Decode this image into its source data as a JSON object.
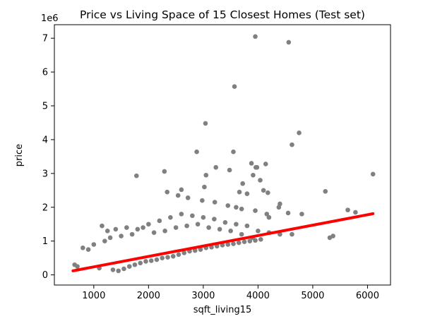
{
  "chart_data": {
    "type": "scatter",
    "title": "Price vs Living Space of 15 Closest Homes (Test set)",
    "xlabel": "sqft_living15",
    "ylabel": "price",
    "y_offset_label": "1e6",
    "xlim": [
      280,
      6420
    ],
    "ylim": [
      -300000,
      7400000
    ],
    "x_ticks": [
      1000,
      2000,
      3000,
      4000,
      5000,
      6000
    ],
    "x_tick_labels": [
      "1000",
      "2000",
      "3000",
      "4000",
      "5000",
      "6000"
    ],
    "y_ticks": [
      0,
      1000000,
      2000000,
      3000000,
      4000000,
      5000000,
      6000000,
      7000000
    ],
    "y_tick_labels": [
      "0",
      "1",
      "2",
      "3",
      "4",
      "5",
      "6",
      "7"
    ],
    "grid": false,
    "legend": "none",
    "colors": {
      "points": "#808080",
      "fit_line": "#ff0000",
      "axes": "#000000"
    },
    "series": [
      {
        "kind": "points",
        "x": [
          3950,
          4560,
          3570,
          3040,
          4750,
          4620,
          2880,
          3550,
          3880,
          3980,
          4140,
          3480,
          3230,
          3050,
          2290,
          1780,
          3960,
          4040,
          3910,
          3720,
          5230,
          4100,
          4180,
          3020,
          2600,
          4550,
          5640,
          5780,
          6100,
          2340,
          2540,
          3660,
          3800,
          4400,
          4380,
          4800,
          4620,
          5370,
          5310,
          2720,
          2980,
          3210,
          3450,
          3600,
          3700,
          3950,
          4160,
          4200,
          2000,
          1900,
          1800,
          2200,
          2400,
          2600,
          2800,
          3000,
          3200,
          3400,
          3600,
          3800,
          4000,
          4200,
          4400,
          1150,
          1250,
          1400,
          1600,
          900,
          800,
          1000,
          1200,
          1300,
          1500,
          1700,
          2100,
          2300,
          2500,
          2700,
          2900,
          3100,
          3300,
          3500,
          3700,
          3900,
          700,
          650,
          1100,
          1350,
          1450,
          1550,
          1650,
          1750,
          1850,
          1950,
          2050,
          2150,
          2250,
          2350,
          2450,
          2550,
          2650,
          2750,
          2850,
          2950,
          3050,
          3150,
          3250,
          3350,
          3450,
          3550,
          3650,
          3750,
          3850,
          3950,
          4050
        ],
        "y": [
          7050000,
          6880000,
          5570000,
          4480000,
          4200000,
          3850000,
          3640000,
          3640000,
          3300000,
          3180000,
          3280000,
          3100000,
          3180000,
          2950000,
          3060000,
          2930000,
          3180000,
          2800000,
          2950000,
          2700000,
          2470000,
          2500000,
          2430000,
          2600000,
          2520000,
          1830000,
          1920000,
          1850000,
          2980000,
          2450000,
          2350000,
          2450000,
          2400000,
          2100000,
          2000000,
          1800000,
          1200000,
          1150000,
          1100000,
          2280000,
          2200000,
          2150000,
          2050000,
          2000000,
          1950000,
          1900000,
          1800000,
          1700000,
          1500000,
          1400000,
          1350000,
          1600000,
          1700000,
          1800000,
          1750000,
          1700000,
          1650000,
          1550000,
          1500000,
          1450000,
          1300000,
          1250000,
          1200000,
          1450000,
          1300000,
          1350000,
          1400000,
          750000,
          800000,
          900000,
          1000000,
          1100000,
          1150000,
          1200000,
          1250000,
          1300000,
          1400000,
          1450000,
          1500000,
          1400000,
          1350000,
          1300000,
          1200000,
          1100000,
          250000,
          300000,
          200000,
          150000,
          120000,
          180000,
          250000,
          300000,
          350000,
          400000,
          420000,
          450000,
          500000,
          520000,
          550000,
          600000,
          650000,
          700000,
          720000,
          750000,
          800000,
          820000,
          850000,
          880000,
          900000,
          920000,
          950000,
          980000,
          1000000,
          1020000,
          1050000
        ]
      },
      {
        "kind": "fit_line",
        "x": [
          620,
          6100
        ],
        "y": [
          120000,
          1810000
        ]
      }
    ]
  }
}
